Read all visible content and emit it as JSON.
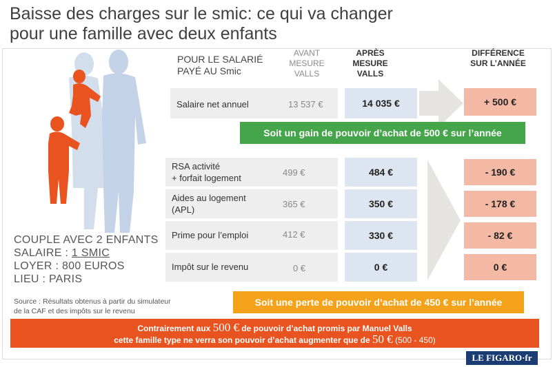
{
  "title_line1": "Baisse des charges sur le smic: ce qui va changer",
  "title_line2": "pour une famille avec deux enfants",
  "headers": {
    "main_line1": "POUR LE SALARIÉ",
    "main_line2": "PAYÉ AU Smic",
    "avant": [
      "AVANT",
      "MESURE",
      "VALLS"
    ],
    "apres": [
      "APRÈS",
      "MESURE",
      "VALLS"
    ],
    "diff": [
      "DIFFÉRENCE",
      "SUR L’ANNÉE"
    ]
  },
  "chart_data": {
    "type": "table",
    "columns": [
      "POUR LE SALARIÉ PAYÉ AU Smic",
      "AVANT MESURE VALLS",
      "APRÈS MESURE VALLS",
      "DIFFÉRENCE SUR L’ANNÉE"
    ],
    "salary_row": {
      "label": "Salaire net annuel",
      "avant": "13 537 €",
      "apres": "14 035 €",
      "diff": "+ 500 €"
    },
    "rows": [
      {
        "label_line1": "RSA activité",
        "label_line2": "+ forfait logement",
        "avant": "499 €",
        "apres": "484 €",
        "diff": "- 190 €"
      },
      {
        "label_line1": "Aides au logement",
        "label_line2": "(APL)",
        "avant": "365 €",
        "apres": "350 €",
        "diff": "- 178 €"
      },
      {
        "label_line1": "Prime pour l’emploi",
        "label_line2": "",
        "avant": "412 €",
        "apres": "330 €",
        "diff": "- 82 €"
      },
      {
        "label_line1": "Impôt sur le revenu",
        "label_line2": "",
        "avant": "0 €",
        "apres": "0 €",
        "diff": "0 €"
      }
    ]
  },
  "green_banner": "Soit un gain de pouvoir d’achat de 500 € sur l’année",
  "orange_banner": "Soit une perte de pouvoir d’achat de 450 € sur l’année",
  "bottom": {
    "line1_a": "Contrairement aux ",
    "line1_big": "500 €",
    "line1_b": " de pouvoir d’achat promis par Manuel Valls",
    "line2_a": "cette famille type ne verra son pouvoir d’achat augmenter que de ",
    "line2_big": "50 €",
    "line2_small": " (500 - 450)"
  },
  "couple": {
    "line1": "COUPLE AVEC 2 ENFANTS",
    "line2_label": "SALAIRE : ",
    "line2_value": "1 SMIC",
    "line3": "LOYER : 800 EUROS",
    "line4": "LIEU : PARIS"
  },
  "source_line1": "Source : Résultats obtenus à partir du simulateur",
  "source_line2": "de la CAF et des impôts sur le revenu",
  "logo": "LE FIGARO·fr",
  "colors": {
    "green": "#44a54a",
    "orange": "#f4a21a",
    "red_orange": "#e9531f",
    "diff_pink": "#f4b9a5",
    "apres_blue": "#dde6f0",
    "silhouette_blue": "#c8d6e8",
    "child_orange": "#e9531f"
  }
}
